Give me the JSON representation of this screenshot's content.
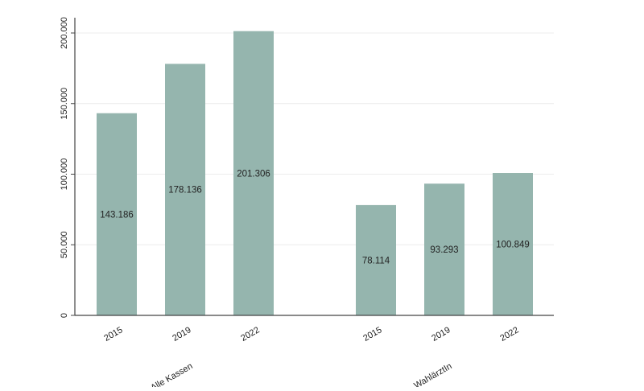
{
  "chart_data": {
    "type": "bar",
    "title": "",
    "xlabel": "",
    "ylabel": "",
    "ylim": [
      0,
      200000
    ],
    "yticks": [
      0,
      50000,
      100000,
      150000,
      200000
    ],
    "ytick_labels": [
      "0",
      "50.000",
      "100.000",
      "150.000",
      "200.000"
    ],
    "grid": true,
    "bar_color": "#95b5ae",
    "groups": [
      {
        "label": "Alle Kassen",
        "categories": [
          "2015",
          "2019",
          "2022"
        ],
        "values": [
          143186,
          178136,
          201306
        ],
        "value_labels": [
          "143.186",
          "178.136",
          "201.306"
        ]
      },
      {
        "label": "WahlärztIn",
        "categories": [
          "2015",
          "2019",
          "2022"
        ],
        "values": [
          78114,
          93293,
          100849
        ],
        "value_labels": [
          "78.114",
          "93.293",
          "100.849"
        ]
      }
    ]
  }
}
